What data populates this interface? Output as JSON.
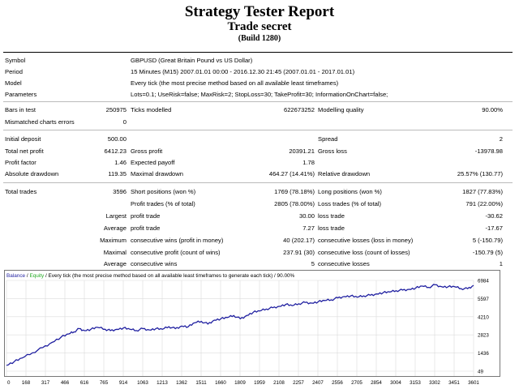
{
  "header": {
    "title": "Strategy Tester Report",
    "subtitle": "Trade secret",
    "build": "(Build 1280)"
  },
  "info": {
    "symbol_label": "Symbol",
    "symbol_value": "GBPUSD (Great Britain Pound vs US Dollar)",
    "period_label": "Period",
    "period_value": "15 Minutes (M15) 2007.01.01 00:00 - 2016.12.30 21:45 (2007.01.01 - 2017.01.01)",
    "model_label": "Model",
    "model_value": "Every tick (the most precise method based on all available least timeframes)",
    "parameters_label": "Parameters",
    "parameters_value": "Lots=0.1; UseRisk=false; MaxRisk=2; StopLoss=30; TakeProfit=30; InformationOnChart=false;"
  },
  "bars": {
    "bars_label": "Bars in test",
    "bars_value": "250975",
    "ticks_label": "Ticks modelled",
    "ticks_value": "622673252",
    "quality_label": "Modelling quality",
    "quality_value": "90.00%",
    "mismatch_label": "Mismatched charts errors",
    "mismatch_value": "0"
  },
  "stats": {
    "initial_deposit_label": "Initial deposit",
    "initial_deposit_value": "500.00",
    "spread_label": "Spread",
    "spread_value": "2",
    "net_profit_label": "Total net profit",
    "net_profit_value": "6412.23",
    "gross_profit_label": "Gross profit",
    "gross_profit_value": "20391.21",
    "gross_loss_label": "Gross loss",
    "gross_loss_value": "-13978.98",
    "profit_factor_label": "Profit factor",
    "profit_factor_value": "1.46",
    "expected_payoff_label": "Expected payoff",
    "expected_payoff_value": "1.78",
    "abs_drawdown_label": "Absolute drawdown",
    "abs_drawdown_value": "119.35",
    "max_drawdown_label": "Maximal drawdown",
    "max_drawdown_value": "464.27 (14.41%)",
    "rel_drawdown_label": "Relative drawdown",
    "rel_drawdown_value": "25.57% (130.77)"
  },
  "trades": {
    "total_trades_label": "Total trades",
    "total_trades_value": "3596",
    "short_label": "Short positions (won %)",
    "short_value": "1769 (78.18%)",
    "long_label": "Long positions (won %)",
    "long_value": "1827 (77.83%)",
    "profit_trades_label": "Profit trades (% of total)",
    "profit_trades_value": "2805 (78.00%)",
    "loss_trades_label": "Loss trades (% of total)",
    "loss_trades_value": "791 (22.00%)",
    "largest_label": "Largest",
    "largest_profit_label": "profit trade",
    "largest_profit_value": "30.00",
    "largest_loss_label": "loss trade",
    "largest_loss_value": "-30.62",
    "average_label": "Average",
    "average_profit_label": "profit trade",
    "average_profit_value": "7.27",
    "average_loss_label": "loss trade",
    "average_loss_value": "-17.67",
    "maximum_label": "Maximum",
    "max_wins_label": "consecutive wins (profit in money)",
    "max_wins_value": "40 (202.17)",
    "max_losses_label": "consecutive losses (loss in money)",
    "max_losses_value": "5 (-150.79)",
    "maximal_label": "Maximal",
    "maximal_wins_label": "consecutive profit (count of wins)",
    "maximal_wins_value": "237.91 (30)",
    "maximal_losses_label": "consecutive loss (count of losses)",
    "maximal_losses_value": "-150.79 (5)",
    "average2_label": "Average",
    "avg_wins_label": "consecutive wins",
    "avg_wins_value": "5",
    "avg_losses_label": "consecutive losses",
    "avg_losses_value": "1"
  },
  "chart_data": {
    "type": "line",
    "title_parts": {
      "balance": "Balance",
      "slash": " / ",
      "equity": "Equity",
      "rest": " / Every tick (the most precise method based on all available least timeframes to generate each tick) / 90.00%"
    },
    "x_ticks": [
      "0",
      "168",
      "317",
      "466",
      "616",
      "765",
      "914",
      "1063",
      "1213",
      "1362",
      "1511",
      "1660",
      "1809",
      "1959",
      "2108",
      "2257",
      "2407",
      "2556",
      "2705",
      "2854",
      "3004",
      "3153",
      "3302",
      "3451",
      "3601"
    ],
    "y_ticks": [
      "6984",
      "5597",
      "4210",
      "2823",
      "1436",
      "49"
    ],
    "xlim": [
      0,
      3596
    ],
    "ylim": [
      49,
      6984
    ],
    "series": [
      {
        "name": "Balance",
        "color": "#1f1fa0",
        "x": [
          0,
          60,
          120,
          200,
          280,
          350,
          420,
          480,
          520,
          560,
          600,
          650,
          700,
          760,
          800,
          850,
          900,
          950,
          1000,
          1050,
          1100,
          1150,
          1200,
          1250,
          1300,
          1350,
          1400,
          1450,
          1500,
          1550,
          1600,
          1650,
          1700,
          1750,
          1800,
          1850,
          1900,
          1950,
          2000,
          2050,
          2100,
          2150,
          2200,
          2250,
          2300,
          2350,
          2400,
          2450,
          2500,
          2550,
          2600,
          2650,
          2700,
          2750,
          2800,
          2850,
          2900,
          2950,
          3000,
          3050,
          3100,
          3150,
          3200,
          3250,
          3300,
          3350,
          3400,
          3450,
          3500,
          3550,
          3596
        ],
        "y": [
          500,
          780,
          1050,
          1450,
          1850,
          2250,
          2650,
          2900,
          3050,
          3300,
          3150,
          3250,
          3400,
          3250,
          3150,
          3250,
          3350,
          3250,
          3150,
          3300,
          3200,
          3300,
          3250,
          3450,
          3300,
          3500,
          3450,
          3750,
          3850,
          3650,
          3950,
          4050,
          4150,
          4300,
          4050,
          4300,
          4550,
          4650,
          4800,
          4900,
          5000,
          5150,
          5050,
          5200,
          5300,
          5250,
          5350,
          5450,
          5500,
          5650,
          5750,
          5800,
          5700,
          5800,
          5850,
          5950,
          6050,
          6100,
          6200,
          6250,
          6300,
          6400,
          6550,
          6450,
          6650,
          6500,
          6500,
          6500,
          6350,
          6350,
          6600
        ]
      }
    ]
  }
}
